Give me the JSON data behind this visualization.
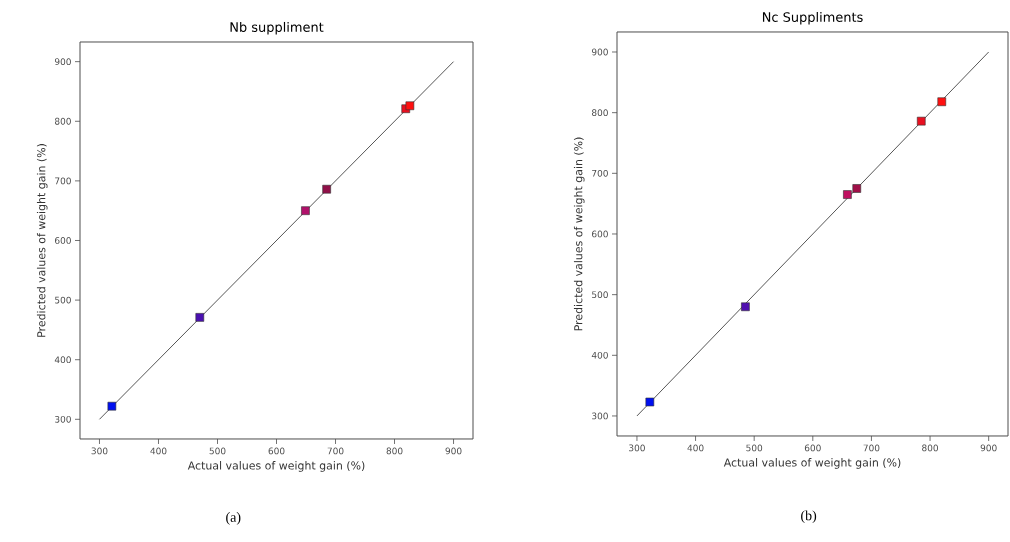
{
  "chart_data": [
    {
      "type": "scatter",
      "title": "Nb suppliment",
      "xlabel": "Actual values of weight gain (%)",
      "ylabel": "Predicted values of weight gain (%)",
      "annotations": [
        "(a)"
      ],
      "xlim": [
        267,
        933
      ],
      "ylim": [
        267,
        933
      ],
      "xticks": [
        300,
        400,
        500,
        600,
        700,
        800,
        900
      ],
      "yticks": [
        300,
        400,
        500,
        600,
        700,
        800,
        900
      ],
      "marker": "square",
      "grid": false,
      "series": [
        {
          "type": "line",
          "color": "#555555",
          "marker": "none",
          "x": [
            300,
            900
          ],
          "values": [
            300,
            900
          ]
        },
        {
          "x": [
            321,
            470,
            649,
            685,
            819,
            826
          ],
          "values": [
            322,
            471,
            650,
            686,
            821,
            826
          ],
          "colors": [
            "#0010f0",
            "#4a10b0",
            "#b0106a",
            "#901048",
            "#e81020",
            "#ff1010"
          ]
        }
      ]
    },
    {
      "type": "scatter",
      "title": "Nc Suppliments",
      "xlabel": "Actual values of weight gain (%)",
      "ylabel": "Predicted values of weight gain (%)",
      "annotations": [
        "(b)"
      ],
      "xlim": [
        266,
        933
      ],
      "ylim": [
        267,
        933
      ],
      "xticks": [
        300,
        400,
        500,
        600,
        700,
        800,
        900
      ],
      "yticks": [
        300,
        400,
        500,
        600,
        700,
        800,
        900
      ],
      "marker": "square",
      "grid": false,
      "series": [
        {
          "type": "line",
          "color": "#555555",
          "marker": "none",
          "x": [
            300,
            900
          ],
          "values": [
            300,
            900
          ]
        },
        {
          "x": [
            322,
            485,
            659,
            675,
            785,
            820
          ],
          "values": [
            323,
            480,
            665,
            675,
            786,
            818
          ],
          "colors": [
            "#0010f0",
            "#5010b0",
            "#c01060",
            "#a01048",
            "#e81020",
            "#ff1010"
          ]
        }
      ]
    }
  ]
}
